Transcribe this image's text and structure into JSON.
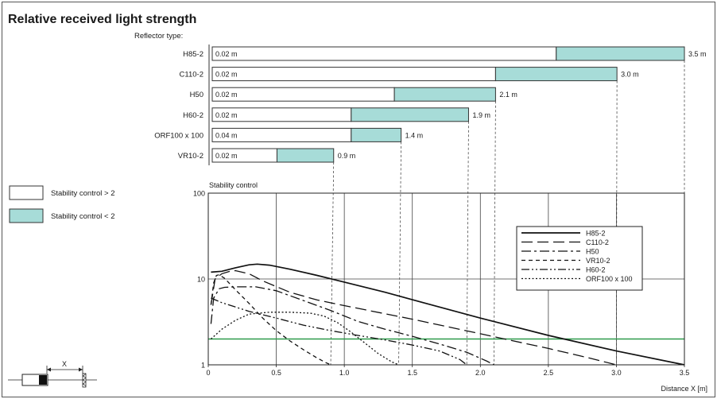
{
  "title": "Relative received light strength",
  "reflector_header": "Reflector type:",
  "legend_boxes": [
    {
      "label": "Stability control > 2",
      "fill": "#ffffff"
    },
    {
      "label": "Stability control < 2",
      "fill": "#a7dcd8"
    }
  ],
  "colors": {
    "teal": "#a7dcd8",
    "threshold": "#2e9a4a",
    "ink": "#1a1a1a"
  },
  "chart_data": [
    {
      "type": "bar",
      "title": "Reflector type:",
      "unit": "m",
      "bars": [
        {
          "name": "H85-2",
          "start": 0.02,
          "stable_end": 2.55,
          "max": 3.5,
          "start_label": "0.02 m",
          "max_label": "3.5 m"
        },
        {
          "name": "C110-2",
          "start": 0.02,
          "stable_end": 2.1,
          "max": 3.0,
          "start_label": "0.02 m",
          "max_label": "3.0 m"
        },
        {
          "name": "H50",
          "start": 0.02,
          "stable_end": 1.35,
          "max": 2.1,
          "start_label": "0.02 m",
          "max_label": "2.1 m"
        },
        {
          "name": "H60-2",
          "start": 0.02,
          "stable_end": 1.03,
          "max": 1.9,
          "start_label": "0.02 m",
          "max_label": "1.9 m"
        },
        {
          "name": "ORF100 x 100",
          "start": 0.04,
          "stable_end": 1.03,
          "max": 1.4,
          "start_label": "0.04 m",
          "max_label": "1.4 m"
        },
        {
          "name": "VR10-2",
          "start": 0.02,
          "stable_end": 0.48,
          "max": 0.9,
          "start_label": "0.02 m",
          "max_label": "0.9 m"
        }
      ]
    },
    {
      "type": "line",
      "title": "Stability control",
      "xlabel": "Distance X [m]",
      "xlim": [
        0,
        3.5
      ],
      "ylim": [
        1,
        100
      ],
      "yscale": "log",
      "x_ticks": [
        0,
        0.5,
        1.0,
        1.5,
        2.0,
        2.5,
        3.0,
        3.5
      ],
      "x_tick_labels": [
        "0",
        "0.5",
        "1.0",
        "1.5",
        "2.0",
        "2.5",
        "3.0",
        "3.5"
      ],
      "y_ticks": [
        1,
        10,
        100
      ],
      "y_tick_labels": [
        "1",
        "10",
        "100"
      ],
      "threshold": 2,
      "legend_position": "center-right",
      "series": [
        {
          "name": "H85-2",
          "dash": "",
          "x": [
            0.02,
            0.1,
            0.2,
            0.3,
            0.36,
            0.45,
            0.6,
            0.8,
            1.0,
            1.3,
            1.6,
            2.0,
            2.5,
            3.0,
            3.5
          ],
          "y": [
            12,
            12.3,
            13.5,
            14.6,
            14.9,
            14.5,
            13,
            11,
            9.2,
            7,
            5.2,
            3.5,
            2.2,
            1.45,
            1.0
          ]
        },
        {
          "name": "C110-2",
          "dash": "14 6",
          "x": [
            0.02,
            0.05,
            0.1,
            0.15,
            0.2,
            0.3,
            0.4,
            0.6,
            0.8,
            1.0,
            1.5,
            2.0,
            2.5,
            2.8,
            3.0
          ],
          "y": [
            5,
            10,
            11.5,
            12.2,
            12.5,
            11.5,
            9.5,
            7,
            5.7,
            4.9,
            3.4,
            2.3,
            1.55,
            1.2,
            1.0
          ]
        },
        {
          "name": "H50",
          "dash": "12 4 3 4",
          "x": [
            0.02,
            0.04,
            0.08,
            0.12,
            0.2,
            0.35,
            0.5,
            0.7,
            0.9,
            1.1,
            1.3,
            1.5,
            1.7,
            1.9,
            2.05,
            2.1
          ],
          "y": [
            3,
            6,
            7.7,
            8,
            8.1,
            8.1,
            7.3,
            5.6,
            4.3,
            3.2,
            2.6,
            2.15,
            1.75,
            1.4,
            1.1,
            1.0
          ]
        },
        {
          "name": "VR10-2",
          "dash": "5 4",
          "x": [
            0.02,
            0.04,
            0.06,
            0.08,
            0.12,
            0.2,
            0.3,
            0.4,
            0.5,
            0.6,
            0.7,
            0.8,
            0.87,
            0.9
          ],
          "y": [
            5,
            9,
            11,
            11.2,
            10.2,
            7.5,
            5.2,
            3.5,
            2.5,
            1.9,
            1.5,
            1.2,
            1.05,
            1.0
          ]
        },
        {
          "name": "H60-2",
          "dash": "10 3 2 3 2 3",
          "x": [
            0.02,
            0.1,
            0.3,
            0.5,
            0.7,
            0.9,
            1.1,
            1.3,
            1.5,
            1.7,
            1.85,
            1.9
          ],
          "y": [
            6,
            5.3,
            4.2,
            3.5,
            2.9,
            2.5,
            2.2,
            1.95,
            1.7,
            1.45,
            1.15,
            1.0
          ]
        },
        {
          "name": "ORF100 x 100",
          "dash": "2 2.5",
          "x": [
            0.02,
            0.1,
            0.2,
            0.3,
            0.45,
            0.6,
            0.75,
            0.85,
            0.95,
            1.05,
            1.15,
            1.25,
            1.35,
            1.4
          ],
          "y": [
            2,
            2.6,
            3.3,
            3.9,
            4.1,
            4.1,
            4.0,
            3.7,
            3.1,
            2.4,
            1.8,
            1.35,
            1.08,
            1.0
          ]
        }
      ]
    }
  ],
  "sensor_diagram": {
    "label": "X"
  }
}
